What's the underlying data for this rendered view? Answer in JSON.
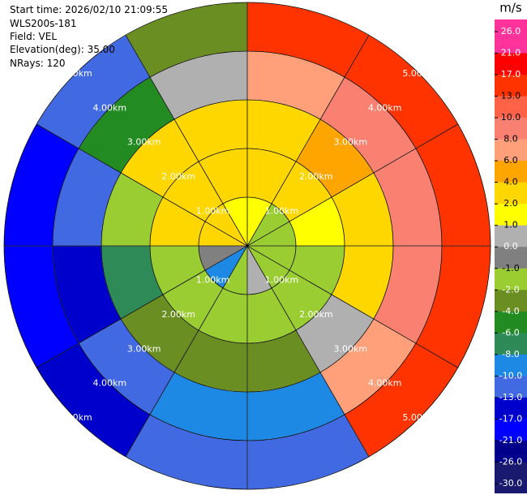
{
  "chart_data": {
    "type": "ppi",
    "header_lines": [
      "Start time: 2026/02/10 21:09:55",
      "WLS200s-181",
      "Field: VEL",
      "Elevation(deg): 35.00",
      "NRays: 120"
    ],
    "azimuth_edges": [
      0,
      30,
      60,
      90,
      120,
      150,
      180,
      210,
      240,
      270,
      300,
      330,
      360
    ],
    "range_edges": [
      0,
      1,
      2,
      3,
      4,
      5
    ],
    "values": [
      [
        2,
        3,
        3,
        7,
        14
      ],
      [
        -1,
        3,
        5,
        10,
        16
      ],
      [
        -1,
        2,
        4,
        9,
        17
      ],
      [
        -1,
        -1,
        3,
        10,
        17
      ],
      [
        -1.5,
        -1.5,
        1,
        8,
        14
      ],
      [
        0.5,
        -1.5,
        -3,
        -8,
        -12
      ],
      [
        -1.5,
        -1.5,
        -3,
        -8,
        -12
      ],
      [
        -8,
        -1.5,
        -3,
        -10,
        -15
      ],
      [
        -0.5,
        -1.5,
        -7,
        -14,
        -20
      ],
      [
        2.5,
        3,
        -1.5,
        -12,
        -20
      ],
      [
        2.5,
        3,
        3,
        -5,
        -10
      ],
      [
        1.5,
        3,
        3,
        0.5,
        -3
      ]
    ],
    "range_rings": [
      {
        "value": 1,
        "label": "1.00km"
      },
      {
        "value": 2,
        "label": "2.00km"
      },
      {
        "value": 3,
        "label": "3.00km"
      },
      {
        "value": 4,
        "label": "4.00km"
      },
      {
        "value": 5,
        "label": "5.00km"
      }
    ],
    "colorbar": {
      "label": "m/s",
      "ticks": [
        {
          "value": 26,
          "label": "26.0"
        },
        {
          "value": 21,
          "label": "21.0"
        },
        {
          "value": 17,
          "label": "17.0"
        },
        {
          "value": 13,
          "label": "13.0"
        },
        {
          "value": 10,
          "label": "10.0"
        },
        {
          "value": 8,
          "label": "8.0"
        },
        {
          "value": 6,
          "label": "6.0"
        },
        {
          "value": 4,
          "label": "4.0"
        },
        {
          "value": 2,
          "label": "2.0"
        },
        {
          "value": 1,
          "label": "1.0"
        },
        {
          "value": 0,
          "label": "0.0"
        },
        {
          "value": -1,
          "label": "-1.0"
        },
        {
          "value": -2,
          "label": "-2.0"
        },
        {
          "value": -4,
          "label": "-4.0"
        },
        {
          "value": -6,
          "label": "-6.0"
        },
        {
          "value": -8,
          "label": "-8.0"
        },
        {
          "value": -10,
          "label": "-10.0"
        },
        {
          "value": -13,
          "label": "-13.0"
        },
        {
          "value": -17,
          "label": "-17.0"
        },
        {
          "value": -21,
          "label": "-21.0"
        },
        {
          "value": -26,
          "label": "-26.0"
        },
        {
          "value": -30,
          "label": "-30.0"
        }
      ],
      "colors": [
        "#ff3399",
        "#ff0000",
        "#ff3300",
        "#ff6347",
        "#fa8072",
        "#ffa07a",
        "#ffa500",
        "#ffd700",
        "#ffff00",
        "#b0b0b0",
        "#808080",
        "#9acd32",
        "#6b8e23",
        "#228b22",
        "#2e8b57",
        "#1e88e5",
        "#4169e1",
        "#0000cd",
        "#0000ff",
        "#00008b",
        "#191970"
      ]
    }
  }
}
